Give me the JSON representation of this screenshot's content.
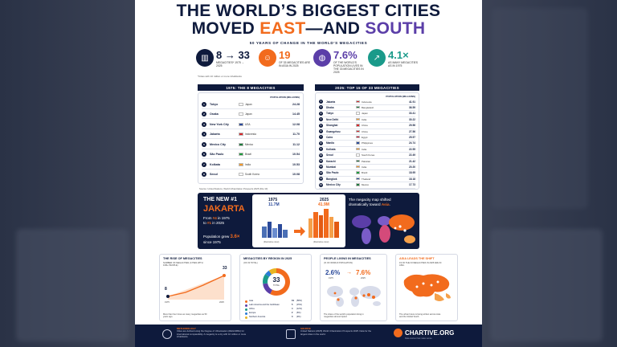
{
  "title": {
    "line1": "THE WORLD’S BIGGEST CITIES",
    "line2a": "MOVED ",
    "line2b": "EAST",
    "line2c": "—AND ",
    "line2d": "SOUTH"
  },
  "subtitle": "50 YEARS OF CHANGE IN THE WORLD’S MEGACITIES",
  "kpis": [
    {
      "big": "8 → 33",
      "small": "MEGACITIES* 1975 → 2025",
      "color": "#0e1a3c",
      "icon": "city-icon"
    },
    {
      "big": "19",
      "small": "OF 33 MEGACITIES ARE IN ASIA IN 2025",
      "color": "#f26b1d",
      "icon": "people-icon"
    },
    {
      "big": "7.6%",
      "small": "OF THE WORLD’S POPULATION LIVES IN THE 33 MEGACITIES IN 2025",
      "color": "#5b3ea8",
      "icon": "globe-icon"
    },
    {
      "big": "4.1×",
      "small": "AS MANY MEGACITIES AS IN 1975",
      "color": "#1a9a8a",
      "icon": "growth-icon"
    }
  ],
  "note": "*Cities with 10 million or more inhabitants",
  "left_panel": {
    "header": "1975: THE 8 MEGACITIES",
    "col_header": "POPULATION (MILLIONS)",
    "rows": [
      {
        "rank": "1",
        "city": "Tokyo",
        "country": "Japan",
        "value": "24.28",
        "flag": "#ffffff"
      },
      {
        "rank": "2",
        "city": "Osaka",
        "country": "Japan",
        "value": "14.45",
        "flag": "#ffffff"
      },
      {
        "rank": "3",
        "city": "New York City",
        "country": "USA",
        "value": "12.08",
        "flag": "#2b4a9a"
      },
      {
        "rank": "4",
        "city": "Jakarta",
        "country": "Indonesia",
        "value": "11.70",
        "flag": "#d6262b"
      },
      {
        "rank": "5",
        "city": "Mexico City",
        "country": "Mexico",
        "value": "11.12",
        "flag": "#1e7a3c"
      },
      {
        "rank": "6",
        "city": "São Paulo",
        "country": "Brazil",
        "value": "10.54",
        "flag": "#1e9a3c"
      },
      {
        "rank": "7",
        "city": "Kolkata",
        "country": "India",
        "value": "10.53",
        "flag": "#f29a2e"
      },
      {
        "rank": "8",
        "city": "Seoul",
        "country": "South Korea",
        "value": "10.08",
        "flag": "#ffffff"
      }
    ]
  },
  "right_panel": {
    "header": "2025: TOP 15 OF 33 MEGACITIES",
    "col_header": "POPULATION (MILLIONS)",
    "rows": [
      {
        "rank": "1",
        "city": "Jakarta",
        "country": "Indonesia",
        "value": "41.91",
        "flag": "#d6262b"
      },
      {
        "rank": "2",
        "city": "Dhaka",
        "country": "Bangladesh",
        "value": "36.59",
        "flag": "#1e7a3c"
      },
      {
        "rank": "3",
        "city": "Tokyo",
        "country": "Japan",
        "value": "33.41",
        "flag": "#ffffff"
      },
      {
        "rank": "4",
        "city": "New Delhi",
        "country": "India",
        "value": "30.22",
        "flag": "#f29a2e"
      },
      {
        "rank": "5",
        "city": "Shanghai",
        "country": "China",
        "value": "29.56",
        "flag": "#d6262b"
      },
      {
        "rank": "6",
        "city": "Guangzhou",
        "country": "China",
        "value": "27.56",
        "flag": "#d6262b"
      },
      {
        "rank": "7",
        "city": "Cairo",
        "country": "Egypt",
        "value": "25.57",
        "flag": "#c8102e"
      },
      {
        "rank": "8",
        "city": "Manila",
        "country": "Philippines",
        "value": "24.74",
        "flag": "#2b4a9a"
      },
      {
        "rank": "9",
        "city": "Kolkata",
        "country": "India",
        "value": "22.55",
        "flag": "#f29a2e"
      },
      {
        "rank": "10",
        "city": "Seoul",
        "country": "South Korea",
        "value": "22.49",
        "flag": "#ffffff"
      },
      {
        "rank": "11",
        "city": "Karachi",
        "country": "Pakistan",
        "value": "21.42",
        "flag": "#1e6a3c"
      },
      {
        "rank": "12",
        "city": "Mumbai",
        "country": "India",
        "value": "20.20",
        "flag": "#f29a2e"
      },
      {
        "rank": "13",
        "city": "São Paulo",
        "country": "Brazil",
        "value": "18.95",
        "flag": "#1e9a3c"
      },
      {
        "rank": "14",
        "city": "Bangkok",
        "country": "Thailand",
        "value": "18.18",
        "flag": "#2b4a9a"
      },
      {
        "rank": "15",
        "city": "Mexico City",
        "country": "Mexico",
        "value": "17.73",
        "flag": "#1e7a3c"
      }
    ]
  },
  "source": "Source: United Nations, World Urbanization Prospects 2025 (File 10)",
  "hero": {
    "label": "THE NEW #1",
    "city": "JAKARTA",
    "line1a": "From ",
    "line1b": "#4",
    "line1c": " in 1975",
    "line1d": "to ",
    "line1e": "#1",
    "line1f": " in 2025",
    "growth_a": "Population grew ",
    "growth_b": "3.6×",
    "growth_c": " since 1975",
    "y1975": "1975",
    "p1975": "11.7M",
    "y2025": "2025",
    "p2025": "41.9M",
    "ill1": "(Illustrative view)",
    "ill2": "(Illustrative view)",
    "map_text_a": "The megacity map shifted dramatically toward ",
    "map_text_b": "Asia",
    "map_text_c": "."
  },
  "cards": [
    {
      "title": "THE RISE OF MEGACITIES",
      "sub": "NUMBER OF MEGACITIES (CITIES WITH 10M+ PEOPLE)",
      "v1": "8",
      "v2": "33",
      "x1": "1975",
      "x2": "2025",
      "foot": "More than four times as many megacities as 50 years ago."
    },
    {
      "title": "MEGACITIES BY REGION IN 2025",
      "sub": "(OF 33 TOTAL)",
      "center": "33",
      "center_sub": "TOTAL",
      "legend": [
        {
          "name": "Asia",
          "val": "19",
          "pct": "(58%)",
          "color": "#f26b1d"
        },
        {
          "name": "Latin America and the Caribbean",
          "val": "5",
          "pct": "(15%)",
          "color": "#5b3ea8"
        },
        {
          "name": "Africa",
          "val": "4",
          "pct": "(12%)",
          "color": "#1a9a8a"
        },
        {
          "name": "Europe",
          "val": "2",
          "pct": "(6%)",
          "color": "#2b7bd6"
        },
        {
          "name": "Northern America",
          "val": "3",
          "pct": "(9%)",
          "color": "#e7b523"
        }
      ]
    },
    {
      "title": "PEOPLE LIVING IN MEGACITIES",
      "sub": "(% OF WORLD POPULATION)",
      "v1": "2.6%",
      "v2": "7.6%",
      "x1": "1975",
      "x2": "2025",
      "foot": "The share of the world’s population living in megacities almost tripled."
    },
    {
      "title": "ASIA LEADS THE SHIFT",
      "sub": "19 OF THE 33 MEGACITIES IN 2025 ARE IN ASIA.",
      "foot": "The urban future is being written across Asia and the Global South."
    }
  ],
  "footer": {
    "meth_title": "METHODOLOGY",
    "meth": "Cities are defined using the Degree of Urbanisation (DEGURBA) for international comparability. A megacity is a city with 10 million or more inhabitants.",
    "src_title": "SOURCE",
    "src": "United Nations (2025) World Urbanization Prospects 2025. Data for the largest cities in the world.",
    "brand": "CHARTIVE.ORG",
    "tag": "Data stories that make sense."
  }
}
